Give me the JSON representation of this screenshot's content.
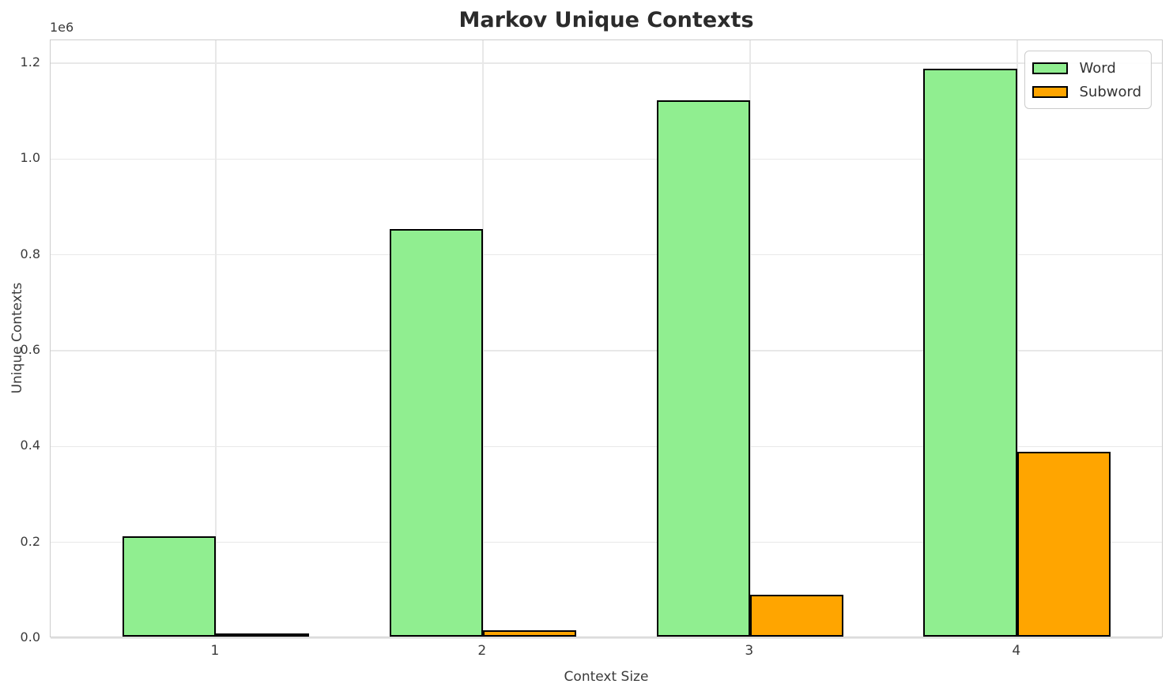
{
  "chart_data": {
    "type": "bar",
    "title": "Markov Unique Contexts",
    "xlabel": "Context Size",
    "ylabel": "Unique Contexts",
    "offset_label": "1e6",
    "categories": [
      "1",
      "2",
      "3",
      "4"
    ],
    "x": [
      1,
      2,
      3,
      4
    ],
    "series": [
      {
        "name": "Word",
        "color": "#90EE90",
        "values": [
          210000,
          850000,
          1120000,
          1185000
        ]
      },
      {
        "name": "Subword",
        "color": "#FFA500",
        "values": [
          3000,
          13000,
          87000,
          385000
        ]
      }
    ],
    "bar_width": 0.35,
    "bar_edge_color": "#000000",
    "xlim": [
      0.382,
      4.548
    ],
    "ylim": [
      0,
      1248000
    ],
    "yticks": [
      0,
      200000,
      400000,
      600000,
      800000,
      1000000,
      1200000
    ],
    "ytick_labels": [
      "0.0",
      "0.2",
      "0.4",
      "0.6",
      "0.8",
      "1.0",
      "1.2"
    ],
    "grid": true,
    "gridline_color": "#e8e8e8",
    "spine_color": "#cccccc",
    "legend_position": "top-right",
    "title_color": "#2b2b2b",
    "tick_label_color": "#3b3b3b"
  }
}
